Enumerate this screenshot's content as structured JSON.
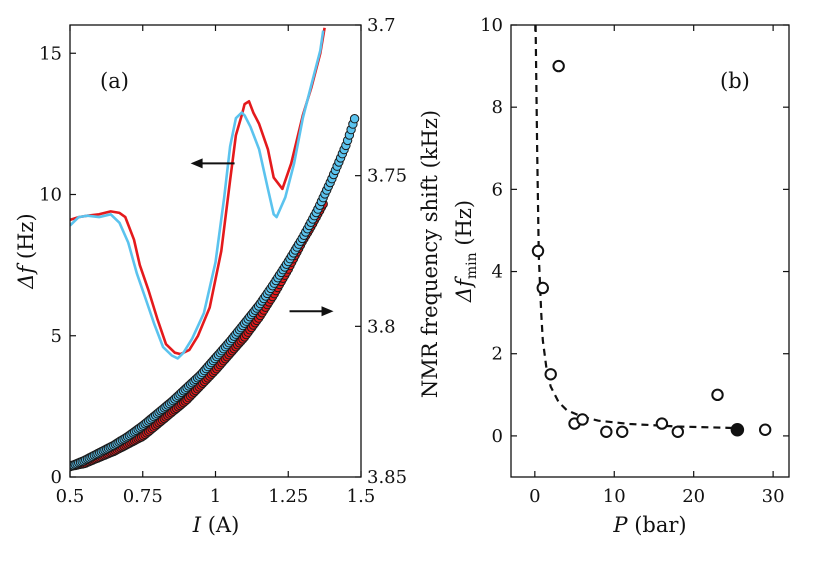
{
  "chart_data": [
    {
      "type": "line",
      "panel_label": "(a)",
      "xlabel": {
        "symbol": "I",
        "unit": "(A)"
      },
      "ylabel": {
        "symbol": "Δf",
        "unit": "(Hz)"
      },
      "y2label": "NMR frequency shift (kHz)",
      "xlim": [
        0.5,
        1.5
      ],
      "ylim": [
        0,
        16
      ],
      "y2lim": [
        3.7,
        3.85
      ],
      "y2_reversed": true,
      "xticks": [
        "0.5",
        "0.75",
        "1",
        "1.25",
        "1.5"
      ],
      "yticks": [
        "0",
        "5",
        "10",
        "15"
      ],
      "y2ticks": [
        "3.7",
        "3.75",
        "3.8",
        "3.85"
      ],
      "arrows": [
        {
          "direction": "left",
          "axis": "left",
          "at": [
            0.99,
            11.1
          ]
        },
        {
          "direction": "right",
          "axis": "right",
          "at": [
            1.33,
            3.795
          ]
        }
      ],
      "colors": {
        "red": "#e41a1c",
        "blue": "#5bc3ee"
      },
      "series": [
        {
          "axis": "left",
          "style": "line",
          "color": "#e41a1c",
          "x": [
            0.5,
            0.53,
            0.56,
            0.6,
            0.64,
            0.67,
            0.69,
            0.72,
            0.74,
            0.77,
            0.8,
            0.83,
            0.86,
            0.88,
            0.91,
            0.94,
            0.98,
            1.02,
            1.05,
            1.07,
            1.09,
            1.1,
            1.115,
            1.13,
            1.15,
            1.18,
            1.2,
            1.23,
            1.26,
            1.3,
            1.33,
            1.36,
            1.375
          ],
          "y": [
            9.1,
            9.2,
            9.25,
            9.3,
            9.4,
            9.35,
            9.2,
            8.4,
            7.5,
            6.6,
            5.6,
            4.7,
            4.4,
            4.35,
            4.5,
            5.0,
            6.0,
            8.0,
            10.5,
            12.1,
            12.8,
            13.2,
            13.3,
            12.9,
            12.5,
            11.6,
            10.6,
            10.2,
            11.1,
            12.8,
            13.8,
            15.0,
            15.9
          ]
        },
        {
          "axis": "left",
          "style": "line",
          "color": "#5bc3ee",
          "x": [
            0.5,
            0.53,
            0.56,
            0.6,
            0.64,
            0.67,
            0.7,
            0.73,
            0.76,
            0.79,
            0.82,
            0.85,
            0.87,
            0.89,
            0.92,
            0.96,
            1.0,
            1.03,
            1.05,
            1.07,
            1.09,
            1.1,
            1.12,
            1.15,
            1.18,
            1.2,
            1.21,
            1.24,
            1.27,
            1.3,
            1.33,
            1.36,
            1.37
          ],
          "y": [
            8.9,
            9.2,
            9.25,
            9.2,
            9.3,
            9.0,
            8.3,
            7.2,
            6.3,
            5.4,
            4.6,
            4.3,
            4.2,
            4.4,
            4.9,
            5.8,
            7.6,
            9.9,
            11.7,
            12.7,
            12.9,
            12.8,
            12.4,
            11.6,
            10.2,
            9.3,
            9.2,
            9.9,
            11.1,
            12.7,
            13.9,
            15.1,
            15.8
          ]
        },
        {
          "axis": "right",
          "style": "markers",
          "color": "#e41a1c",
          "x": [
            0.5,
            0.55,
            0.6,
            0.65,
            0.7,
            0.75,
            0.8,
            0.85,
            0.9,
            0.95,
            1.0,
            1.05,
            1.1,
            1.15,
            1.2,
            1.25,
            1.3,
            1.325,
            1.35,
            1.375
          ],
          "y": [
            3.8465,
            3.8455,
            3.8435,
            3.8415,
            3.839,
            3.8365,
            3.8325,
            3.8285,
            3.8245,
            3.8195,
            3.8145,
            3.809,
            3.8035,
            3.797,
            3.7895,
            3.781,
            3.7715,
            3.7675,
            3.763,
            3.7585
          ]
        },
        {
          "axis": "right",
          "style": "markers",
          "color": "#5bc3ee",
          "x": [
            0.5,
            0.55,
            0.6,
            0.65,
            0.7,
            0.75,
            0.8,
            0.85,
            0.9,
            0.95,
            1.0,
            1.05,
            1.1,
            1.15,
            1.2,
            1.25,
            1.3,
            1.35,
            1.4,
            1.45,
            1.48
          ],
          "y": [
            3.8465,
            3.8445,
            3.842,
            3.8395,
            3.8365,
            3.833,
            3.829,
            3.825,
            3.8205,
            3.816,
            3.8105,
            3.805,
            3.799,
            3.793,
            3.786,
            3.7785,
            3.7705,
            3.7615,
            3.751,
            3.7395,
            3.7305
          ]
        }
      ]
    },
    {
      "type": "scatter",
      "panel_label": "(b)",
      "xlabel": {
        "symbol": "P",
        "unit": "(bar)"
      },
      "ylabel": {
        "symbol": "Δf",
        "subscript": "min",
        "unit": "(Hz)"
      },
      "xlim": [
        -3,
        32
      ],
      "ylim": [
        -1,
        10
      ],
      "xticks": [
        "0",
        "10",
        "20",
        "30"
      ],
      "yticks": [
        "0",
        "2",
        "4",
        "6",
        "8",
        "10"
      ],
      "points_open": {
        "x": [
          0.4,
          1.0,
          2.0,
          3.0,
          5.0,
          6.0,
          9.0,
          11.0,
          16.0,
          18.0,
          23.0,
          29.0
        ],
        "y": [
          4.5,
          3.6,
          1.5,
          9.0,
          0.3,
          0.4,
          0.1,
          0.1,
          0.3,
          0.1,
          1.0,
          0.15
        ]
      },
      "points_filled": {
        "x": [
          25.5
        ],
        "y": [
          0.15
        ]
      },
      "fit_curve": {
        "x": [
          0.1,
          0.3,
          0.5,
          0.8,
          1.0,
          1.5,
          2.0,
          3.0,
          4.0,
          6.0,
          8.0,
          12.0,
          18.0,
          25.5
        ],
        "y": [
          10.0,
          6.9,
          4.38,
          3.0,
          2.33,
          1.6,
          1.2,
          0.82,
          0.63,
          0.46,
          0.37,
          0.29,
          0.23,
          0.19
        ]
      }
    }
  ]
}
